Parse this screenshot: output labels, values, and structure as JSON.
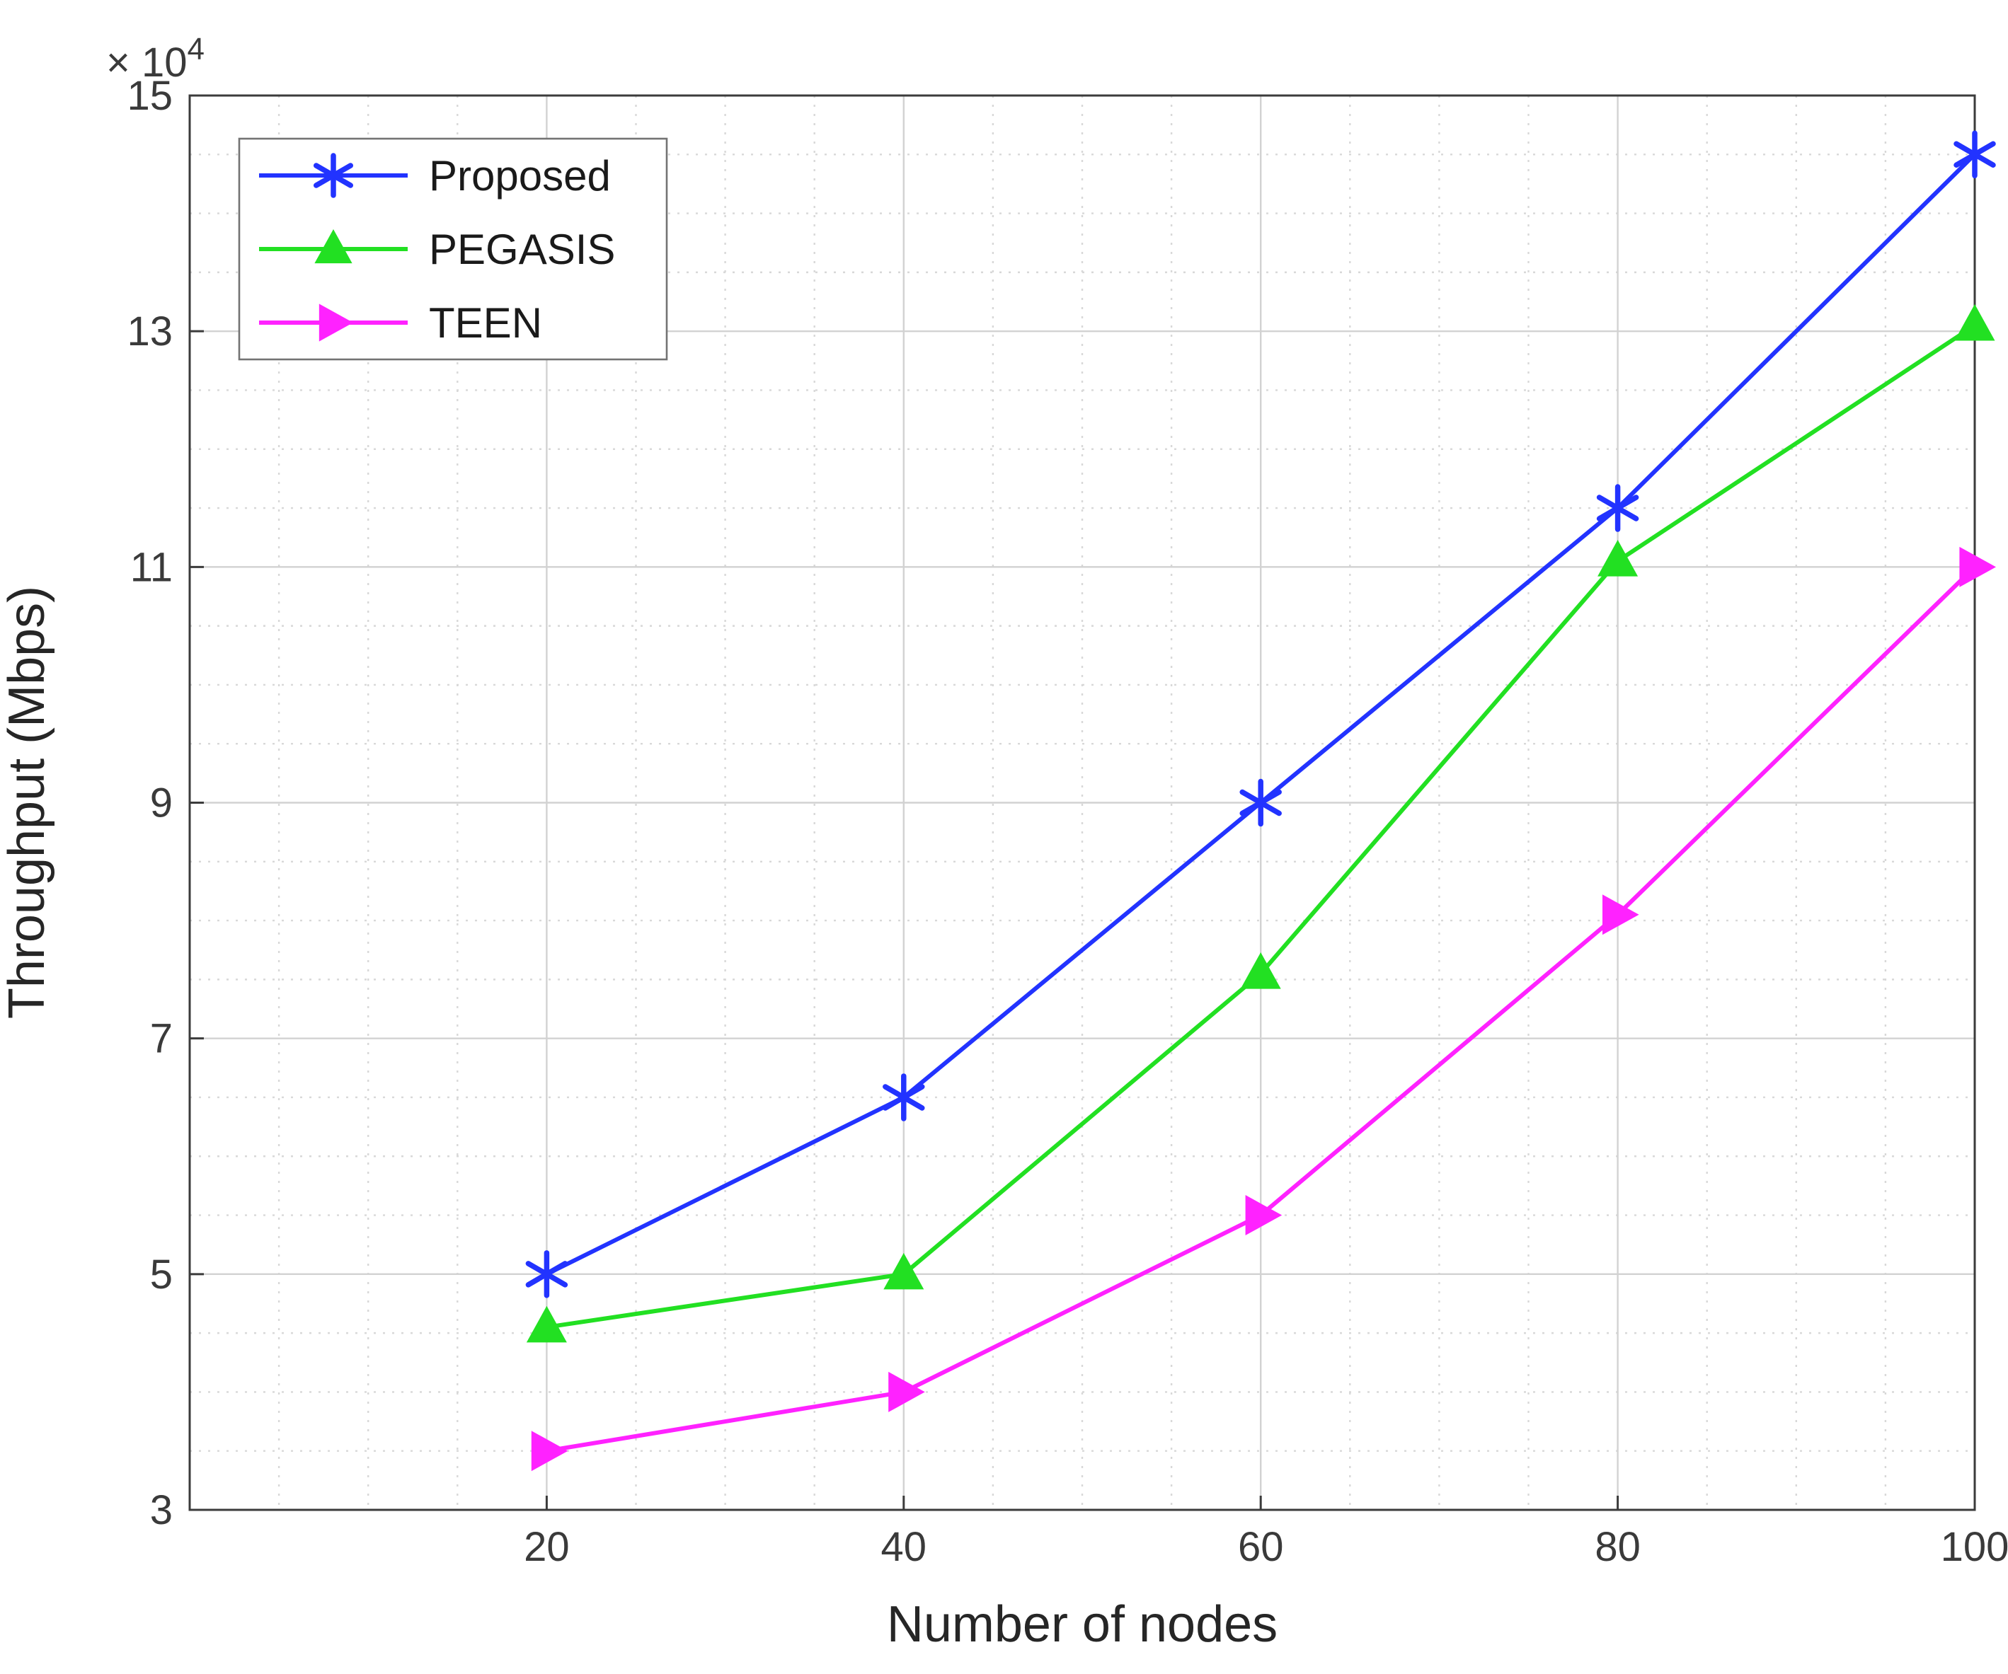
{
  "chart_data": {
    "type": "line",
    "title": "",
    "xlabel": "Number of nodes",
    "ylabel": "Throughput (Mbps)",
    "y_offset_label": "× 10",
    "y_offset_exponent": "4",
    "x": [
      20,
      40,
      60,
      80,
      100
    ],
    "xlim": [
      0,
      100
    ],
    "ylim": [
      3,
      15
    ],
    "x_ticks": [
      20,
      40,
      60,
      80,
      100
    ],
    "y_ticks": [
      3,
      5,
      7,
      9,
      11,
      13,
      15
    ],
    "x_minor_step": 5,
    "y_minor_step": 0.5,
    "grid": true,
    "minor_grid": true,
    "legend_position": "top-left",
    "legend_entries": [
      "Proposed",
      "PEGASIS",
      "TEEN"
    ],
    "series": [
      {
        "name": "Proposed",
        "color": "#2233ff",
        "marker": "asterisk",
        "values": [
          5.0,
          6.5,
          9.0,
          11.5,
          14.5
        ]
      },
      {
        "name": "PEGASIS",
        "color": "#22e022",
        "marker": "triangle-up",
        "values": [
          4.55,
          5.0,
          7.55,
          11.05,
          13.05
        ]
      },
      {
        "name": "TEEN",
        "color": "#ff22ff",
        "marker": "triangle-right",
        "values": [
          3.5,
          4.0,
          5.5,
          8.05,
          11.0
        ]
      }
    ],
    "colors": {
      "axis": "#3b3b3b",
      "major_grid": "#d2d2d2",
      "minor_grid": "#d8d8d8",
      "legend_border": "#737373",
      "background": "#ffffff"
    }
  }
}
